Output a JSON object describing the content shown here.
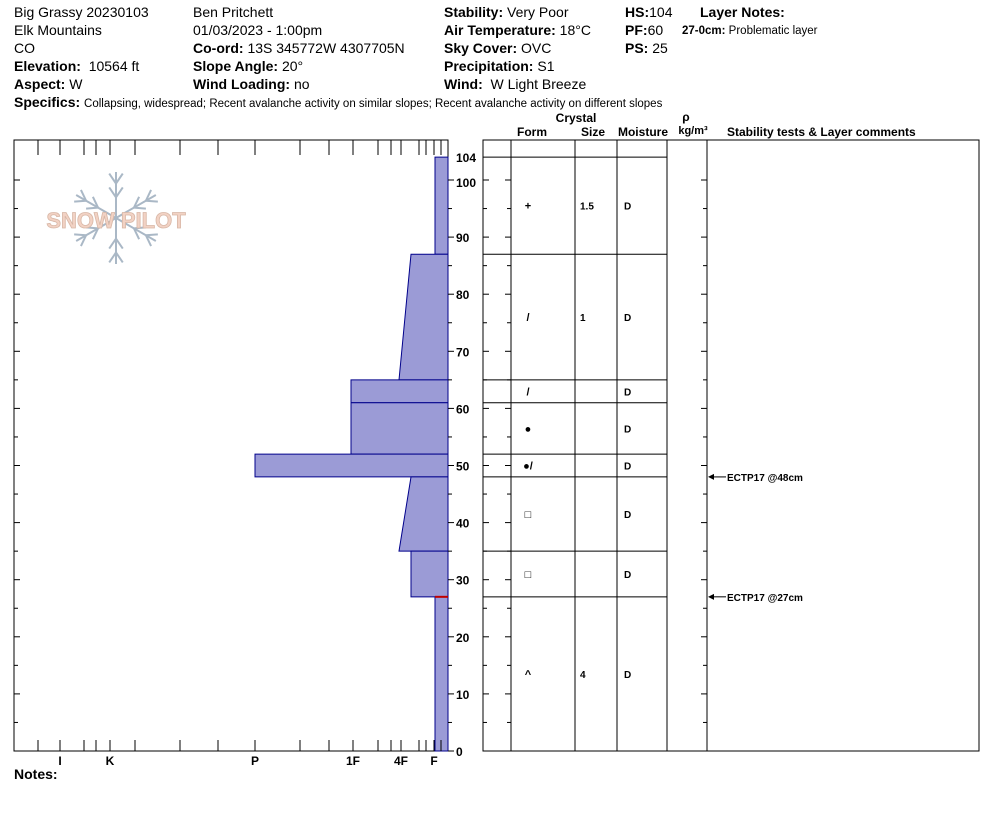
{
  "header": {
    "site": "Big Grassy 20230103",
    "range": "Elk Mountains",
    "state": "CO",
    "elevation_label": "Elevation:",
    "elevation_value": "10564 ft",
    "aspect_label": "Aspect:",
    "aspect_value": "W",
    "observer": "Ben Pritchett",
    "datetime": "01/03/2023 - 1:00pm",
    "coord_label": "Co-ord:",
    "coord_value": "13S 345772W 4307705N",
    "slope_label": "Slope Angle:",
    "slope_value": "20°",
    "wind_loading_label": "Wind Loading:",
    "wind_loading_value": "no",
    "stability_label": "Stability:",
    "stability_value": "Very Poor",
    "air_temp_label": "Air Temperature:",
    "air_temp_value": "18°C",
    "sky_label": "Sky Cover:",
    "sky_value": "OVC",
    "precip_label": "Precipitation:",
    "precip_value": "S1",
    "wind_label": "Wind:",
    "wind_value": "W Light Breeze",
    "hs_label": "HS:",
    "hs_value": "104",
    "pf_label": "PF:",
    "pf_value": "60",
    "ps_label": "PS:",
    "ps_value": "25",
    "layer_notes_label": "Layer Notes:",
    "layer_note_depth": "27-0cm:",
    "layer_note_text": "Problematic layer",
    "specifics_label": "Specifics:",
    "specifics_value": "Collapsing, widespread;  Recent avalanche activity on similar slopes;  Recent avalanche activity on different slopes",
    "notes_label": "Notes:"
  },
  "logo_text": "SNOW PILOT",
  "columns": {
    "crystal": "Crystal",
    "form": "Form",
    "size": "Size",
    "moisture": "Moisture",
    "rho": "ρ",
    "density_unit": "kg/m³",
    "stability": "Stability tests & Layer comments"
  },
  "colors": {
    "hardness_fill": "#9b9bd6",
    "hardness_stroke": "#00008b",
    "problem_layer": "#c00000"
  },
  "chart_data": {
    "type": "area",
    "title": "",
    "y_axis": {
      "label": "",
      "range": [
        0,
        104
      ],
      "unit": "cm",
      "ticks": [
        0,
        10,
        20,
        30,
        40,
        50,
        60,
        70,
        80,
        90,
        100,
        104
      ]
    },
    "x_axis": {
      "hardness_scale": [
        "F",
        "4F",
        "1F",
        "P",
        "K",
        "I"
      ]
    },
    "hardness_profile": [
      {
        "top": 104,
        "bottom": 87,
        "hardness": "F"
      },
      {
        "top": 87,
        "bottom": 65,
        "hardness_top": "4F-",
        "hardness_bottom": "4F+"
      },
      {
        "top": 65,
        "bottom": 61,
        "hardness": "1F"
      },
      {
        "top": 61,
        "bottom": 52,
        "hardness": "1F"
      },
      {
        "top": 52,
        "bottom": 48,
        "hardness": "P"
      },
      {
        "top": 48,
        "bottom": 35,
        "hardness_top": "4F-",
        "hardness_bottom": "4F+"
      },
      {
        "top": 35,
        "bottom": 27,
        "hardness": "4F-"
      },
      {
        "top": 27,
        "bottom": 0,
        "hardness": "F"
      }
    ],
    "layers": [
      {
        "top": 104,
        "bottom": 87,
        "form": "+",
        "size": "1.5",
        "moisture": "D"
      },
      {
        "top": 87,
        "bottom": 65,
        "form": "/",
        "size": "1",
        "moisture": "D"
      },
      {
        "top": 65,
        "bottom": 61,
        "form": "/",
        "size": "",
        "moisture": "D"
      },
      {
        "top": 61,
        "bottom": 52,
        "form": "●",
        "size": "",
        "moisture": "D"
      },
      {
        "top": 52,
        "bottom": 48,
        "form": "●/",
        "size": "",
        "moisture": "D"
      },
      {
        "top": 48,
        "bottom": 35,
        "form": "□",
        "size": "",
        "moisture": "D"
      },
      {
        "top": 35,
        "bottom": 27,
        "form": "□",
        "size": "",
        "moisture": "D"
      },
      {
        "top": 27,
        "bottom": 0,
        "form": "^",
        "size": "4",
        "moisture": "D"
      }
    ],
    "stability_tests": [
      {
        "depth": 48,
        "label": "ECTP17 @48cm"
      },
      {
        "depth": 27,
        "label": "ECTP17 @27cm"
      }
    ],
    "problem_layer_depth": 27
  }
}
